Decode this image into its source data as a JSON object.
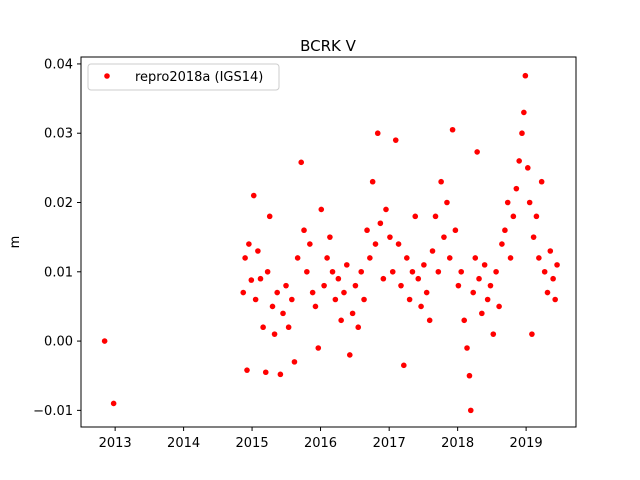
{
  "chart_data": {
    "type": "scatter",
    "title": "BCRK V",
    "xlabel": "",
    "ylabel": "m",
    "x_is_date": true,
    "xlim": [
      "2012-07-03",
      "2019-09-24"
    ],
    "ylim": [
      -0.0124,
      0.041
    ],
    "x_ticks": [
      {
        "value": "2013-01-01",
        "label": "2013"
      },
      {
        "value": "2014-01-01",
        "label": "2014"
      },
      {
        "value": "2015-01-01",
        "label": "2015"
      },
      {
        "value": "2016-01-01",
        "label": "2016"
      },
      {
        "value": "2017-01-01",
        "label": "2017"
      },
      {
        "value": "2018-01-01",
        "label": "2018"
      },
      {
        "value": "2019-01-01",
        "label": "2019"
      }
    ],
    "y_ticks": [
      {
        "value": -0.01,
        "label": "−0.01"
      },
      {
        "value": 0.0,
        "label": "0.00"
      },
      {
        "value": 0.01,
        "label": "0.01"
      },
      {
        "value": 0.02,
        "label": "0.02"
      },
      {
        "value": 0.03,
        "label": "0.03"
      },
      {
        "value": 0.04,
        "label": "0.04"
      }
    ],
    "grid": false,
    "legend_position": "top-left",
    "series": [
      {
        "name": "repro2018a (IGS14)",
        "color": "#ff0000",
        "marker": "circle",
        "points": [
          {
            "x": "2012-11-06",
            "y": 0.0
          },
          {
            "x": "2012-12-24",
            "y": -0.009
          },
          {
            "x": "2014-11-15",
            "y": 0.007
          },
          {
            "x": "2014-11-25",
            "y": 0.012
          },
          {
            "x": "2014-12-05",
            "y": -0.0042
          },
          {
            "x": "2014-12-15",
            "y": 0.014
          },
          {
            "x": "2014-12-28",
            "y": 0.0088
          },
          {
            "x": "2015-01-10",
            "y": 0.021
          },
          {
            "x": "2015-01-20",
            "y": 0.006
          },
          {
            "x": "2015-02-01",
            "y": 0.013
          },
          {
            "x": "2015-02-15",
            "y": 0.009
          },
          {
            "x": "2015-03-01",
            "y": 0.002
          },
          {
            "x": "2015-03-15",
            "y": -0.0045
          },
          {
            "x": "2015-03-25",
            "y": 0.01
          },
          {
            "x": "2015-04-05",
            "y": 0.018
          },
          {
            "x": "2015-04-20",
            "y": 0.005
          },
          {
            "x": "2015-05-01",
            "y": 0.001
          },
          {
            "x": "2015-05-15",
            "y": 0.007
          },
          {
            "x": "2015-06-01",
            "y": -0.0048
          },
          {
            "x": "2015-06-15",
            "y": 0.004
          },
          {
            "x": "2015-07-01",
            "y": 0.008
          },
          {
            "x": "2015-07-15",
            "y": 0.002
          },
          {
            "x": "2015-08-01",
            "y": 0.006
          },
          {
            "x": "2015-08-15",
            "y": -0.003
          },
          {
            "x": "2015-09-01",
            "y": 0.012
          },
          {
            "x": "2015-09-20",
            "y": 0.0258
          },
          {
            "x": "2015-10-05",
            "y": 0.016
          },
          {
            "x": "2015-10-20",
            "y": 0.01
          },
          {
            "x": "2015-11-05",
            "y": 0.014
          },
          {
            "x": "2015-11-20",
            "y": 0.007
          },
          {
            "x": "2015-12-05",
            "y": 0.005
          },
          {
            "x": "2015-12-20",
            "y": -0.001
          },
          {
            "x": "2016-01-05",
            "y": 0.019
          },
          {
            "x": "2016-01-20",
            "y": 0.008
          },
          {
            "x": "2016-02-05",
            "y": 0.012
          },
          {
            "x": "2016-02-20",
            "y": 0.015
          },
          {
            "x": "2016-03-05",
            "y": 0.01
          },
          {
            "x": "2016-03-20",
            "y": 0.006
          },
          {
            "x": "2016-04-05",
            "y": 0.009
          },
          {
            "x": "2016-04-20",
            "y": 0.003
          },
          {
            "x": "2016-05-05",
            "y": 0.007
          },
          {
            "x": "2016-05-20",
            "y": 0.011
          },
          {
            "x": "2016-06-05",
            "y": -0.002
          },
          {
            "x": "2016-06-20",
            "y": 0.004
          },
          {
            "x": "2016-07-05",
            "y": 0.008
          },
          {
            "x": "2016-07-20",
            "y": 0.002
          },
          {
            "x": "2016-08-05",
            "y": 0.01
          },
          {
            "x": "2016-08-20",
            "y": 0.006
          },
          {
            "x": "2016-09-05",
            "y": 0.016
          },
          {
            "x": "2016-09-20",
            "y": 0.012
          },
          {
            "x": "2016-10-05",
            "y": 0.023
          },
          {
            "x": "2016-10-20",
            "y": 0.014
          },
          {
            "x": "2016-11-01",
            "y": 0.03
          },
          {
            "x": "2016-11-15",
            "y": 0.017
          },
          {
            "x": "2016-12-01",
            "y": 0.009
          },
          {
            "x": "2016-12-15",
            "y": 0.019
          },
          {
            "x": "2017-01-05",
            "y": 0.015
          },
          {
            "x": "2017-01-20",
            "y": 0.01
          },
          {
            "x": "2017-02-05",
            "y": 0.029
          },
          {
            "x": "2017-02-20",
            "y": 0.014
          },
          {
            "x": "2017-03-05",
            "y": 0.008
          },
          {
            "x": "2017-03-20",
            "y": -0.0035
          },
          {
            "x": "2017-04-05",
            "y": 0.012
          },
          {
            "x": "2017-04-20",
            "y": 0.006
          },
          {
            "x": "2017-05-05",
            "y": 0.01
          },
          {
            "x": "2017-05-20",
            "y": 0.018
          },
          {
            "x": "2017-06-05",
            "y": 0.009
          },
          {
            "x": "2017-06-20",
            "y": 0.005
          },
          {
            "x": "2017-07-05",
            "y": 0.011
          },
          {
            "x": "2017-07-20",
            "y": 0.007
          },
          {
            "x": "2017-08-05",
            "y": 0.003
          },
          {
            "x": "2017-08-20",
            "y": 0.013
          },
          {
            "x": "2017-09-05",
            "y": 0.018
          },
          {
            "x": "2017-09-20",
            "y": 0.01
          },
          {
            "x": "2017-10-05",
            "y": 0.023
          },
          {
            "x": "2017-10-20",
            "y": 0.015
          },
          {
            "x": "2017-11-05",
            "y": 0.02
          },
          {
            "x": "2017-11-20",
            "y": 0.012
          },
          {
            "x": "2017-12-05",
            "y": 0.0305
          },
          {
            "x": "2017-12-20",
            "y": 0.016
          },
          {
            "x": "2018-01-05",
            "y": 0.008
          },
          {
            "x": "2018-01-20",
            "y": 0.01
          },
          {
            "x": "2018-02-05",
            "y": 0.003
          },
          {
            "x": "2018-02-20",
            "y": -0.001
          },
          {
            "x": "2018-03-05",
            "y": -0.005
          },
          {
            "x": "2018-03-12",
            "y": -0.01
          },
          {
            "x": "2018-03-25",
            "y": 0.007
          },
          {
            "x": "2018-04-05",
            "y": 0.012
          },
          {
            "x": "2018-04-15",
            "y": 0.0273
          },
          {
            "x": "2018-04-25",
            "y": 0.009
          },
          {
            "x": "2018-05-10",
            "y": 0.004
          },
          {
            "x": "2018-05-25",
            "y": 0.011
          },
          {
            "x": "2018-06-10",
            "y": 0.006
          },
          {
            "x": "2018-06-25",
            "y": 0.008
          },
          {
            "x": "2018-07-10",
            "y": 0.001
          },
          {
            "x": "2018-07-25",
            "y": 0.01
          },
          {
            "x": "2018-08-10",
            "y": 0.005
          },
          {
            "x": "2018-08-25",
            "y": 0.014
          },
          {
            "x": "2018-09-10",
            "y": 0.016
          },
          {
            "x": "2018-09-25",
            "y": 0.02
          },
          {
            "x": "2018-10-10",
            "y": 0.012
          },
          {
            "x": "2018-10-25",
            "y": 0.018
          },
          {
            "x": "2018-11-10",
            "y": 0.022
          },
          {
            "x": "2018-11-25",
            "y": 0.026
          },
          {
            "x": "2018-12-10",
            "y": 0.03
          },
          {
            "x": "2018-12-20",
            "y": 0.033
          },
          {
            "x": "2018-12-28",
            "y": 0.0383
          },
          {
            "x": "2019-01-10",
            "y": 0.025
          },
          {
            "x": "2019-01-20",
            "y": 0.02
          },
          {
            "x": "2019-02-01",
            "y": 0.001
          },
          {
            "x": "2019-02-10",
            "y": 0.015
          },
          {
            "x": "2019-02-25",
            "y": 0.018
          },
          {
            "x": "2019-03-10",
            "y": 0.012
          },
          {
            "x": "2019-03-25",
            "y": 0.023
          },
          {
            "x": "2019-04-10",
            "y": 0.01
          },
          {
            "x": "2019-04-25",
            "y": 0.007
          },
          {
            "x": "2019-05-10",
            "y": 0.013
          },
          {
            "x": "2019-05-25",
            "y": 0.009
          },
          {
            "x": "2019-06-05",
            "y": 0.006
          },
          {
            "x": "2019-06-15",
            "y": 0.011
          }
        ]
      }
    ]
  }
}
